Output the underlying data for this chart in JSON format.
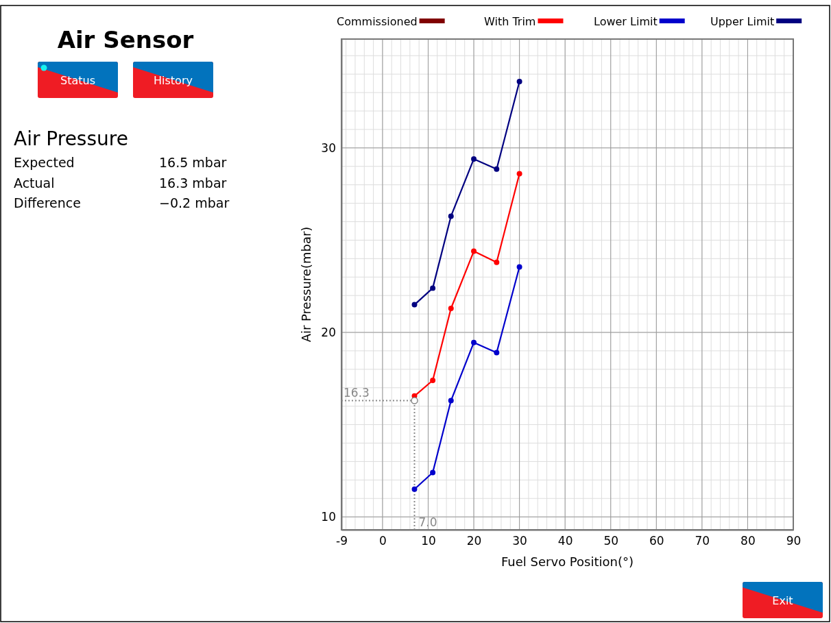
{
  "chart_data": [
    {
      "type": "other",
      "title": "Air Sensor",
      "subtitle": "Air Pressure",
      "annotations": [
        "Status",
        "History",
        "Expected",
        "16.5 mbar",
        "Actual",
        "16.3 mbar",
        "Difference",
        "−0.2 mbar",
        "Exit"
      ]
    },
    {
      "type": "line",
      "xlabel": "Fuel Servo Position(°)",
      "ylabel": "Air Pressure(mbar)",
      "x": [
        7,
        11,
        15,
        20,
        25,
        30
      ],
      "xlim": [
        -9,
        90
      ],
      "xticks": [
        -9,
        0,
        10,
        20,
        30,
        40,
        50,
        60,
        70,
        80,
        90
      ],
      "ylim": [
        9.3,
        35.9
      ],
      "yticks": [
        10,
        20,
        30
      ],
      "grid": true,
      "legend": "top",
      "marker": "circle",
      "line_style": "solid",
      "series": [
        {
          "name": "Commissioned",
          "color": "#800000",
          "values": [
            null,
            null,
            null,
            null,
            null,
            null
          ]
        },
        {
          "name": "With Trim",
          "color": "#ff0000",
          "values": [
            16.55,
            17.4,
            21.3,
            24.4,
            23.8,
            28.6
          ]
        },
        {
          "name": "Lower Limit",
          "color": "#0000cc",
          "values": [
            11.5,
            12.4,
            16.3,
            19.45,
            18.9,
            23.55
          ]
        },
        {
          "name": "Upper Limit",
          "color": "#000080",
          "values": [
            21.5,
            22.4,
            26.3,
            29.4,
            28.85,
            33.6
          ]
        },
        {
          "type": "scatter",
          "color": "#888888",
          "x": [
            7
          ],
          "values": [
            16.3
          ]
        }
      ],
      "ref_lines": [
        {
          "axis": "y",
          "value": 16.3,
          "label": "16.3",
          "color": "#888888",
          "line_style": "dotted"
        },
        {
          "axis": "x",
          "value": 7,
          "label": "7.0",
          "color": "#888888",
          "line_style": "dotted"
        }
      ]
    }
  ]
}
